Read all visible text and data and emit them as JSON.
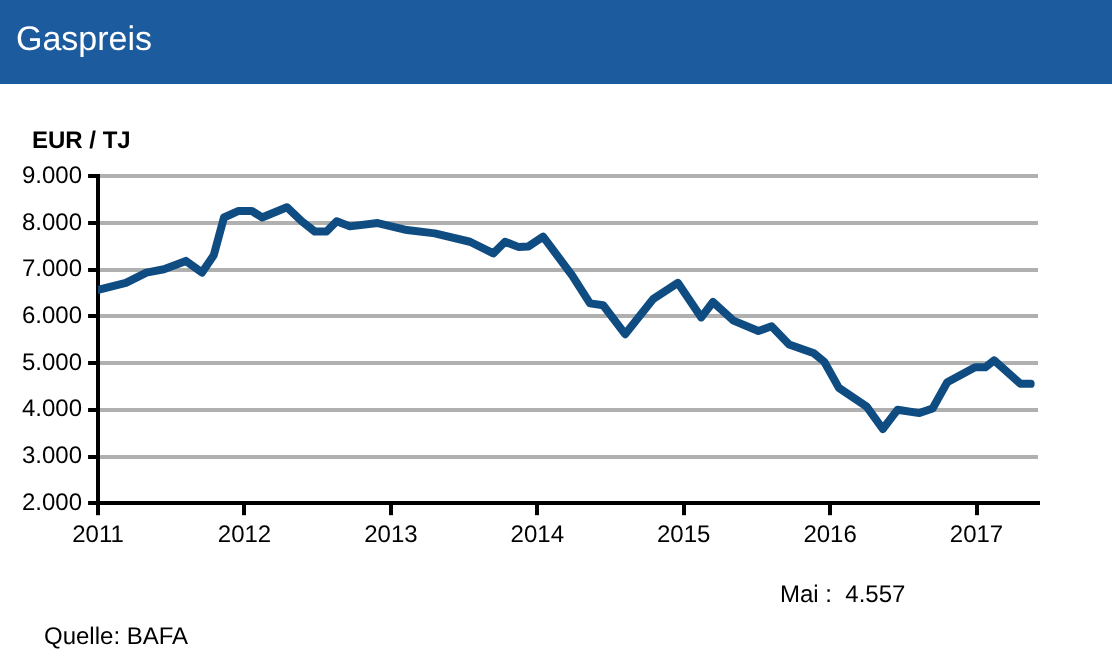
{
  "chart_data": {
    "type": "line",
    "title": "Gaspreis",
    "ylabel": "EUR / TJ",
    "x": [
      2011.0,
      2011.19,
      2011.33,
      2011.45,
      2011.6,
      2011.71,
      2011.79,
      2011.86,
      2011.96,
      2012.05,
      2012.12,
      2012.29,
      2012.39,
      2012.48,
      2012.56,
      2012.63,
      2012.72,
      2012.91,
      2013.11,
      2013.3,
      2013.54,
      2013.7,
      2013.78,
      2013.87,
      2013.94,
      2014.04,
      2014.24,
      2014.36,
      2014.45,
      2014.6,
      2014.79,
      2014.96,
      2015.12,
      2015.2,
      2015.34,
      2015.51,
      2015.6,
      2015.72,
      2015.89,
      2015.96,
      2016.06,
      2016.25,
      2016.36,
      2016.46,
      2016.61,
      2016.7,
      2016.8,
      2016.99,
      2017.06,
      2017.12,
      2017.3,
      2017.37
    ],
    "series": [
      {
        "color": "#0f4c81",
        "values": [
          6570,
          6720,
          6940,
          7010,
          7190,
          6940,
          7310,
          8120,
          8260,
          8260,
          8120,
          8340,
          8040,
          7820,
          7820,
          8040,
          7930,
          8000,
          7850,
          7780,
          7600,
          7350,
          7600,
          7490,
          7500,
          7710,
          6870,
          6280,
          6240,
          5620,
          6370,
          6720,
          5980,
          6310,
          5910,
          5690,
          5790,
          5400,
          5210,
          5030,
          4470,
          4070,
          3590,
          4000,
          3930,
          4030,
          4590,
          4910,
          4910,
          5060,
          4560,
          4557
        ]
      }
    ],
    "xlim": [
      2011,
      2017.42
    ],
    "xticks": [
      2011,
      2012,
      2013,
      2014,
      2015,
      2016,
      2017
    ],
    "ylim": [
      2000,
      9000
    ],
    "yticks": [
      {
        "value": 2000,
        "label": "2.000"
      },
      {
        "value": 3000,
        "label": "3.000"
      },
      {
        "value": 4000,
        "label": "4.000"
      },
      {
        "value": 5000,
        "label": "5.000"
      },
      {
        "value": 6000,
        "label": "6.000"
      },
      {
        "value": 7000,
        "label": "7.000"
      },
      {
        "value": 8000,
        "label": "8.000"
      },
      {
        "value": 9000,
        "label": "9.000"
      }
    ],
    "grid": "y",
    "legend": false,
    "marker": "none",
    "line_style": "solid",
    "annotations": [
      "Mai :  4.557",
      "Quelle: BAFA"
    ]
  }
}
